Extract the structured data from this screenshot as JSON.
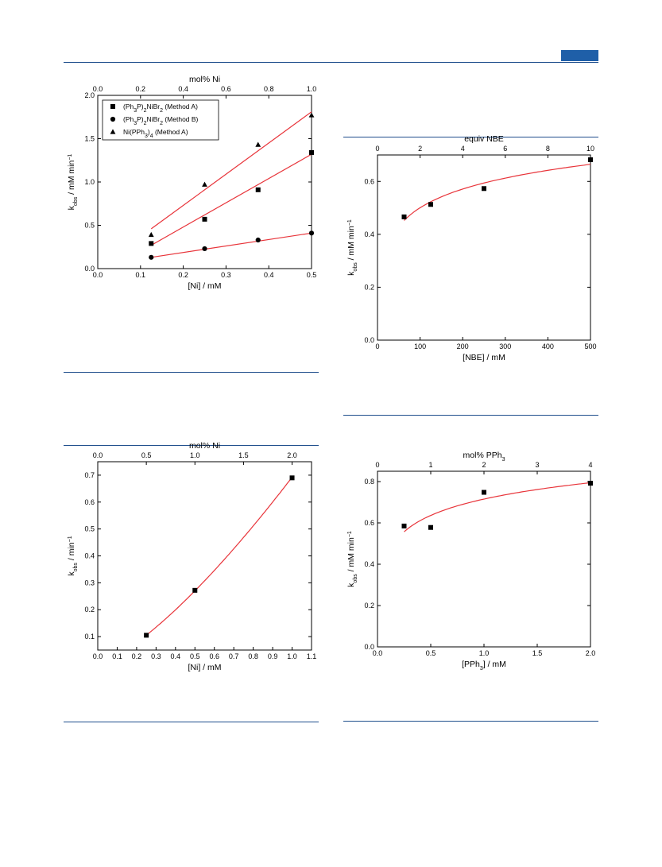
{
  "page": {
    "header_rule_color": "#1f4e8c",
    "badge_color": "#1f5fa8"
  },
  "chart_data": [
    {
      "type": "scatter",
      "x_axis": {
        "label": "[Ni] / mM",
        "min": 0,
        "max": 0.5,
        "ticks": [
          0,
          0.1,
          0.2,
          0.3,
          0.4,
          0.5
        ],
        "tick_labels": [
          "0.0",
          "0.1",
          "0.2",
          "0.3",
          "0.4",
          "0.5"
        ]
      },
      "y_axis": {
        "label_main": "k",
        "label_sub": "obs",
        "label_rest": " / mM min",
        "label_sup": "−1",
        "min": 0,
        "max": 2.0,
        "ticks": [
          0,
          0.5,
          1.0,
          1.5,
          2.0
        ],
        "tick_labels": [
          "0.0",
          "0.5",
          "1.0",
          "1.5",
          "2.0"
        ]
      },
      "top_axis": {
        "label": "mol% Ni",
        "min": 0,
        "max": 1.0,
        "ticks": [
          0,
          0.2,
          0.4,
          0.6,
          0.8,
          1.0
        ],
        "tick_labels": [
          "0.0",
          "0.2",
          "0.4",
          "0.6",
          "0.8",
          "1.0"
        ]
      },
      "legend": {
        "position": "top-left",
        "entries": [
          {
            "marker": "square",
            "parts": [
              [
                "(Ph",
                ""
              ],
              [
                "3",
                "sub"
              ],
              [
                "P)",
                ""
              ],
              [
                "2",
                "sub"
              ],
              [
                "NiBr",
                ""
              ],
              [
                "2",
                "sub"
              ],
              [
                " (Method A)",
                ""
              ]
            ]
          },
          {
            "marker": "circle",
            "parts": [
              [
                "(Ph",
                ""
              ],
              [
                "3",
                "sub"
              ],
              [
                "P)",
                ""
              ],
              [
                "2",
                "sub"
              ],
              [
                "NiBr",
                ""
              ],
              [
                "2",
                "sub"
              ],
              [
                " (Method B)",
                ""
              ]
            ]
          },
          {
            "marker": "triangle",
            "parts": [
              [
                "Ni(PPh",
                ""
              ],
              [
                "3",
                "sub"
              ],
              [
                ")",
                ""
              ],
              [
                "4",
                "sub"
              ],
              [
                " (Method A)",
                ""
              ]
            ]
          }
        ]
      },
      "series": [
        {
          "marker": "square",
          "x": [
            0.125,
            0.25,
            0.375,
            0.5
          ],
          "y": [
            0.29,
            0.57,
            0.91,
            1.34
          ],
          "fit": [
            [
              0.125,
              0.27
            ],
            [
              0.5,
              1.32
            ]
          ]
        },
        {
          "marker": "circle",
          "x": [
            0.125,
            0.25,
            0.375,
            0.5
          ],
          "y": [
            0.13,
            0.23,
            0.33,
            0.41
          ],
          "fit": [
            [
              0.125,
              0.13
            ],
            [
              0.5,
              0.41
            ]
          ]
        },
        {
          "marker": "triangle",
          "x": [
            0.125,
            0.25,
            0.375,
            0.5
          ],
          "y": [
            0.39,
            0.97,
            1.43,
            1.77
          ],
          "fit": [
            [
              0.125,
              0.46
            ],
            [
              0.5,
              1.81
            ]
          ]
        }
      ],
      "fit_color": "#e8343a"
    },
    {
      "type": "scatter",
      "x_axis": {
        "label": "[NBE] / mM",
        "min": 0,
        "max": 500,
        "ticks": [
          0,
          100,
          200,
          300,
          400,
          500
        ],
        "tick_labels": [
          "0",
          "100",
          "200",
          "300",
          "400",
          "500"
        ]
      },
      "y_axis": {
        "label_main": "k",
        "label_sub": "obs",
        "label_rest": " / mM min",
        "label_sup": "−1",
        "min": 0,
        "max": 0.7,
        "ticks": [
          0,
          0.2,
          0.4,
          0.6
        ],
        "tick_labels": [
          "0.0",
          "0.2",
          "0.4",
          "0.6"
        ]
      },
      "top_axis": {
        "label": "equiv NBE",
        "min": 0,
        "max": 10,
        "ticks": [
          0,
          2,
          4,
          6,
          8,
          10
        ],
        "tick_labels": [
          "0",
          "2",
          "4",
          "6",
          "8",
          "10"
        ]
      },
      "series": [
        {
          "marker": "square",
          "x": [
            62.5,
            125,
            250,
            500
          ],
          "y": [
            0.466,
            0.513,
            0.573,
            0.682
          ],
          "fit_curve": {
            "kind": "log",
            "x_range": [
              62.5,
              500
            ]
          }
        }
      ],
      "fit_color": "#e8343a"
    },
    {
      "type": "scatter",
      "x_axis": {
        "label": "[Ni] / mM",
        "min": 0,
        "max": 1.1,
        "ticks": [
          0,
          0.1,
          0.2,
          0.3,
          0.4,
          0.5,
          0.6,
          0.7,
          0.8,
          0.9,
          1.0,
          1.1
        ],
        "tick_labels": [
          "0.0",
          "0.1",
          "0.2",
          "0.3",
          "0.4",
          "0.5",
          "0.6",
          "0.7",
          "0.8",
          "0.9",
          "1.0",
          "1.1"
        ]
      },
      "y_axis": {
        "label_main": "k",
        "label_sub": "obs",
        "label_rest": " / min",
        "label_sup": "−1",
        "min": 0.05,
        "max": 0.75,
        "ticks": [
          0.1,
          0.2,
          0.3,
          0.4,
          0.5,
          0.6,
          0.7
        ],
        "tick_labels": [
          "0.1",
          "0.2",
          "0.3",
          "0.4",
          "0.5",
          "0.6",
          "0.7"
        ]
      },
      "top_axis": {
        "label": "mol% Ni",
        "min": 0,
        "max": 2.2,
        "ticks": [
          0,
          0.5,
          1.0,
          1.5,
          2.0
        ],
        "tick_labels": [
          "0.0",
          "0.5",
          "1.0",
          "1.5",
          "2.0"
        ]
      },
      "series": [
        {
          "marker": "square",
          "x": [
            0.25,
            0.5,
            1.0
          ],
          "y": [
            0.105,
            0.272,
            0.69
          ],
          "fit_curve": {
            "kind": "power",
            "x_range": [
              0.25,
              1.0
            ]
          }
        }
      ],
      "fit_color": "#e8343a"
    },
    {
      "type": "scatter",
      "x_axis": {
        "label_main": "[PPh",
        "label_sub": "3",
        "label_rest": "] / mM",
        "min": 0,
        "max": 2.0,
        "ticks": [
          0,
          0.5,
          1.0,
          1.5,
          2.0
        ],
        "tick_labels": [
          "0.0",
          "0.5",
          "1.0",
          "1.5",
          "2.0"
        ]
      },
      "y_axis": {
        "label_main": "k",
        "label_sub": "obs",
        "label_rest": " / mM min",
        "label_sup": "−1",
        "min": 0,
        "max": 0.85,
        "ticks": [
          0,
          0.2,
          0.4,
          0.6,
          0.8
        ],
        "tick_labels": [
          "0.0",
          "0.2",
          "0.4",
          "0.6",
          "0.8"
        ]
      },
      "top_axis": {
        "label_main": "mol% PPh",
        "label_sub": "3",
        "min": 0,
        "max": 4,
        "ticks": [
          0,
          1,
          2,
          3,
          4
        ],
        "tick_labels": [
          "0",
          "1",
          "2",
          "3",
          "4"
        ]
      },
      "series": [
        {
          "marker": "square",
          "x": [
            0.25,
            0.5,
            1.0,
            2.0
          ],
          "y": [
            0.585,
            0.578,
            0.748,
            0.792
          ],
          "fit_curve": {
            "kind": "log",
            "x_range": [
              0.25,
              2.0
            ]
          }
        }
      ],
      "fit_color": "#e8343a"
    }
  ]
}
